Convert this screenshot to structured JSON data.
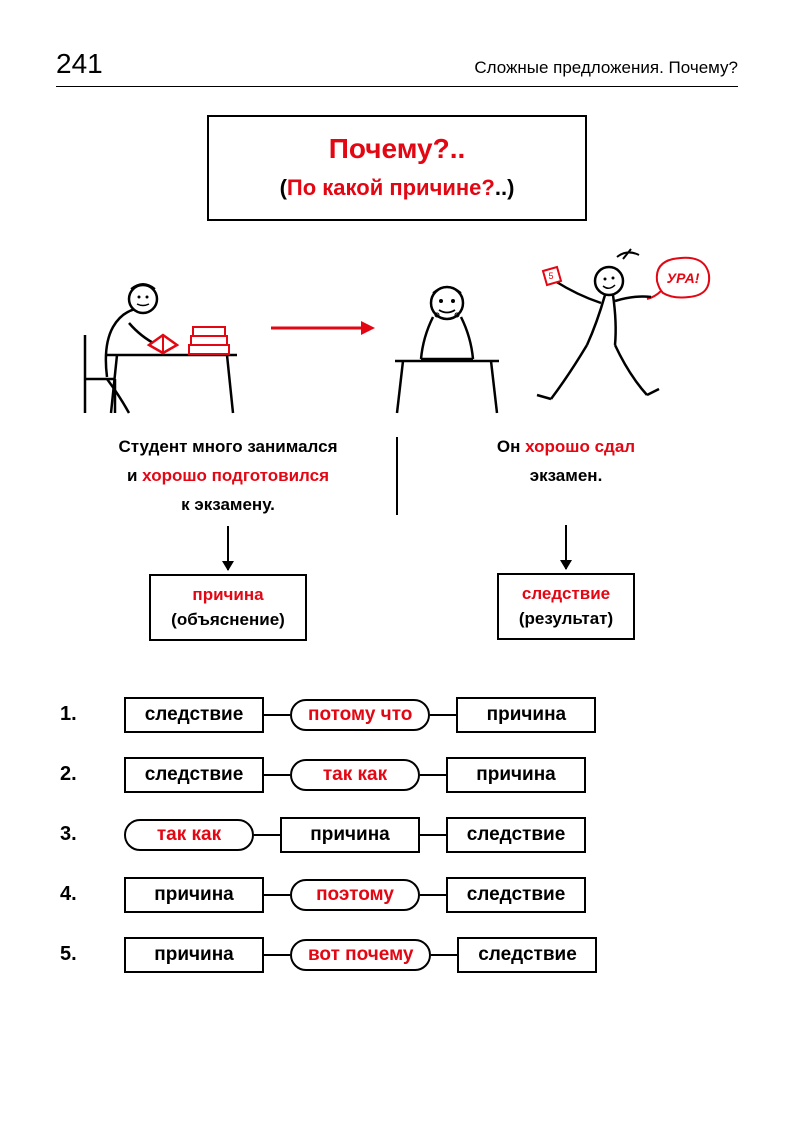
{
  "page_number": "241",
  "section_title": "Сложные предложения. Почему?",
  "title": {
    "main": "Почему?..",
    "sub_open": "(",
    "sub_red": "По какой причине?",
    "sub_close": "..)"
  },
  "colors": {
    "accent": "#e30613",
    "text": "#000000",
    "bg": "#ffffff"
  },
  "illustration": {
    "bubble_text": "УРА!",
    "arrow_color": "#e30613"
  },
  "sentences": {
    "left": {
      "line1_black": "Студент много занимался",
      "line2_prefix": "и ",
      "line2_red": "хорошо подготовился",
      "line3_black": "к экзамену."
    },
    "right": {
      "line1_prefix": "Он ",
      "line1_red": "хорошо сдал",
      "line2_black": "экзамен."
    }
  },
  "labels": {
    "left_red": "причина",
    "left_black": "(объяснение)",
    "right_red": "следствие",
    "right_black": "(результат)"
  },
  "patterns": [
    {
      "num": "1.",
      "cells": [
        {
          "t": "box",
          "v": "следствие"
        },
        {
          "t": "pill",
          "v": "потому что"
        },
        {
          "t": "box",
          "v": "причина"
        }
      ]
    },
    {
      "num": "2.",
      "cells": [
        {
          "t": "box",
          "v": "следствие"
        },
        {
          "t": "pill",
          "v": "так как"
        },
        {
          "t": "box",
          "v": "причина"
        }
      ]
    },
    {
      "num": "3.",
      "cells": [
        {
          "t": "pill",
          "v": "так как"
        },
        {
          "t": "box",
          "v": "причина"
        },
        {
          "t": "box",
          "v": "следствие"
        }
      ]
    },
    {
      "num": "4.",
      "cells": [
        {
          "t": "box",
          "v": "причина"
        },
        {
          "t": "pill",
          "v": "поэтому"
        },
        {
          "t": "box",
          "v": "следствие"
        }
      ]
    },
    {
      "num": "5.",
      "cells": [
        {
          "t": "box",
          "v": "причина"
        },
        {
          "t": "pill",
          "v": "вот почему"
        },
        {
          "t": "box",
          "v": "следствие"
        }
      ]
    }
  ]
}
